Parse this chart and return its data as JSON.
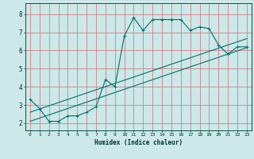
{
  "xlabel": "Humidex (Indice chaleur)",
  "background_color": "#cce8e8",
  "grid_color": "#d08080",
  "line_color": "#007070",
  "xlim": [
    -0.5,
    23.5
  ],
  "ylim": [
    1.6,
    8.6
  ],
  "xticks": [
    0,
    1,
    2,
    3,
    4,
    5,
    6,
    7,
    8,
    9,
    10,
    11,
    12,
    13,
    14,
    15,
    16,
    17,
    18,
    19,
    20,
    21,
    22,
    23
  ],
  "yticks": [
    2,
    3,
    4,
    5,
    6,
    7,
    8
  ],
  "line1_x": [
    0,
    1,
    2,
    3,
    4,
    5,
    6,
    7,
    8,
    9,
    10,
    11,
    12,
    13,
    14,
    15,
    16,
    17,
    18,
    19,
    20,
    21,
    22,
    23
  ],
  "line1_y": [
    3.3,
    2.8,
    2.1,
    2.1,
    2.4,
    2.4,
    2.6,
    2.9,
    4.4,
    4.0,
    6.8,
    7.8,
    7.1,
    7.7,
    7.7,
    7.7,
    7.7,
    7.1,
    7.3,
    7.2,
    6.3,
    5.8,
    6.2,
    6.2
  ],
  "line2_x": [
    0,
    23
  ],
  "line2_y": [
    2.1,
    6.15
  ],
  "line3_x": [
    0,
    23
  ],
  "line3_y": [
    2.6,
    6.65
  ]
}
